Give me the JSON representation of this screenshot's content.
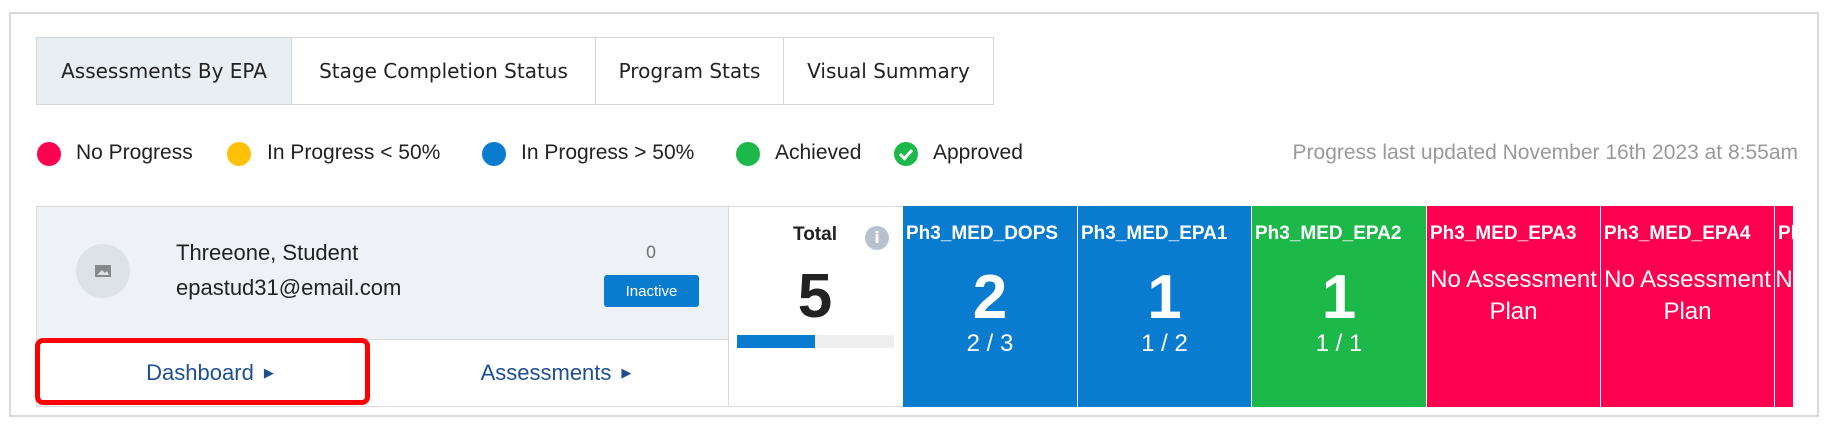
{
  "tabs": [
    "Assessments By EPA",
    "Stage Completion Status",
    "Program Stats",
    "Visual Summary"
  ],
  "legend": [
    {
      "label": "No Progress",
      "color": "#ff0050"
    },
    {
      "label": "In Progress < 50%",
      "color": "#ffc107"
    },
    {
      "label": "In Progress > 50%",
      "color": "#0a7ccf"
    },
    {
      "label": "Achieved",
      "color": "#1cb84a"
    },
    {
      "label": "Approved",
      "color": "#1cb84a"
    }
  ],
  "last_updated": "Progress last updated November 16th 2023 at 8:55am",
  "student": {
    "name": "Threeone, Student",
    "email": "epastud31@email.com",
    "count": 0,
    "status": "Inactive",
    "links": [
      "Dashboard",
      "Assessments"
    ]
  },
  "total": {
    "label": "Total",
    "value": 5
  },
  "epas": [
    {
      "title": "Ph3_MED_DOPS",
      "color": "#0a7ccf",
      "value": 2,
      "fraction": "2 / 3"
    },
    {
      "title": "Ph3_MED_EPA1",
      "color": "#0a7ccf",
      "value": 1,
      "fraction": "1 / 2"
    },
    {
      "title": "Ph3_MED_EPA2",
      "color": "#1cb84a",
      "value": 1,
      "fraction": "1 / 1"
    },
    {
      "title": "Ph3_MED_EPA3",
      "color": "#ff0050",
      "message": "No Assessment Plan"
    },
    {
      "title": "Ph3_MED_EPA4",
      "color": "#ff0050",
      "message": "No Assessment Plan"
    },
    {
      "title": "Ph",
      "color": "#ff0050",
      "message": "N"
    }
  ]
}
